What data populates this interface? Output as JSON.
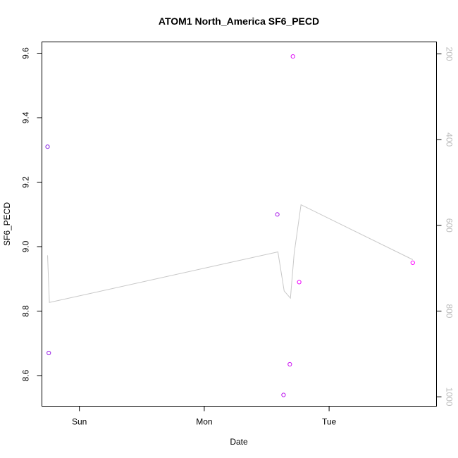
{
  "chart_data": {
    "type": "scatter",
    "title": "ATOM1 North_America SF6_PECD",
    "xlabel": "Date",
    "ylabel": "SF6_PECD",
    "x_ticks": [
      "Sun",
      "Mon",
      "Tue"
    ],
    "y_ticks": [
      "8.6",
      "8.8",
      "9.0",
      "9.2",
      "9.4",
      "9.6"
    ],
    "y2_ticks": [
      "200",
      "400",
      "600",
      "800",
      "1000"
    ],
    "xlim_days": [
      -0.3,
      2.86
    ],
    "ylim": [
      8.505,
      9.635
    ],
    "y2lim_reversed": [
      1022,
      172
    ],
    "grid": false,
    "colors": {
      "line": "#c8c8c8",
      "points_start": "#8a2be2",
      "points_end": "#ff00ff",
      "right_axis": "#bdbdbd"
    },
    "series": [
      {
        "marker": "circle",
        "axis": "left",
        "points": [
          {
            "day": -0.255,
            "y": 9.31
          },
          {
            "day": -0.245,
            "y": 8.67
          },
          {
            "day": 1.585,
            "y": 9.1
          },
          {
            "day": 1.635,
            "y": 8.54
          },
          {
            "day": 1.685,
            "y": 8.635
          },
          {
            "day": 1.71,
            "y": 9.59
          },
          {
            "day": 1.76,
            "y": 8.89
          },
          {
            "day": 2.67,
            "y": 8.95
          }
        ]
      },
      {
        "marker": "line",
        "axis": "right",
        "points": [
          {
            "day": -0.255,
            "y": 670
          },
          {
            "day": -0.24,
            "y": 780
          },
          {
            "day": 1.59,
            "y": 662
          },
          {
            "day": 1.64,
            "y": 753
          },
          {
            "day": 1.69,
            "y": 770
          },
          {
            "day": 1.72,
            "y": 665
          },
          {
            "day": 1.775,
            "y": 552
          },
          {
            "day": 2.67,
            "y": 680
          }
        ]
      }
    ]
  }
}
